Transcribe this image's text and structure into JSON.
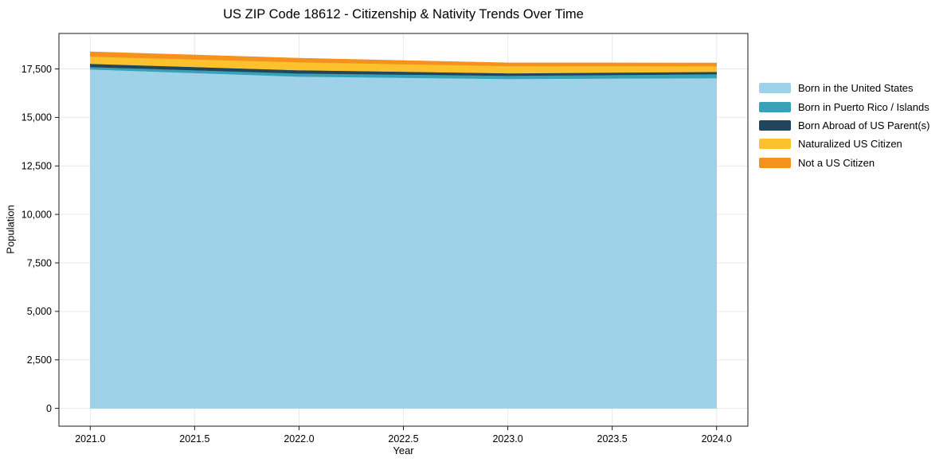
{
  "figure": {
    "background_color": "#ffffff",
    "text_color": "#000000",
    "spine_color": "#1a1a1a"
  },
  "chart_data": {
    "type": "area",
    "stacked": true,
    "title": "US ZIP Code 18612 - Citizenship & Nativity Trends Over Time",
    "xlabel": "Year",
    "ylabel": "Population",
    "x": [
      2021,
      2022,
      2023,
      2024
    ],
    "series": [
      {
        "name": "Born in the United States",
        "color": "#9FD1E8",
        "values": [
          17480,
          17110,
          16990,
          17030
        ]
      },
      {
        "name": "Born in Puerto Rico / Islands",
        "color": "#37A2B7",
        "values": [
          125,
          165,
          165,
          205
        ]
      },
      {
        "name": "Born Abroad of US Parent(s)",
        "color": "#21455B",
        "values": [
          165,
          165,
          125,
          120
        ]
      },
      {
        "name": "Naturalized US Citizen",
        "color": "#FBC22D",
        "values": [
          370,
          410,
          370,
          290
        ]
      },
      {
        "name": "Not a US Citizen",
        "color": "#F5921E",
        "values": [
          245,
          205,
          165,
          165
        ]
      }
    ],
    "totals": [
      18385,
      18055,
      17815,
      17810
    ],
    "xticks": [
      {
        "value": 2021.0,
        "label": "2021.0"
      },
      {
        "value": 2021.5,
        "label": "2021.5"
      },
      {
        "value": 2022.0,
        "label": "2022.0"
      },
      {
        "value": 2022.5,
        "label": "2022.5"
      },
      {
        "value": 2023.0,
        "label": "2023.0"
      },
      {
        "value": 2023.5,
        "label": "2023.5"
      },
      {
        "value": 2024.0,
        "label": "2024.0"
      }
    ],
    "yticks": [
      {
        "value": 0,
        "label": "0"
      },
      {
        "value": 2500,
        "label": "2,500"
      },
      {
        "value": 5000,
        "label": "5,000"
      },
      {
        "value": 7500,
        "label": "7,500"
      },
      {
        "value": 10000,
        "label": "10,000"
      },
      {
        "value": 12500,
        "label": "12,500"
      },
      {
        "value": 15000,
        "label": "15,000"
      },
      {
        "value": 17500,
        "label": "17,500"
      }
    ],
    "xlim": [
      2020.85,
      2024.15
    ],
    "ylim": [
      -920,
      19330
    ],
    "grid": true,
    "grid_color": "#e9e9e9",
    "legend_position": "right"
  }
}
